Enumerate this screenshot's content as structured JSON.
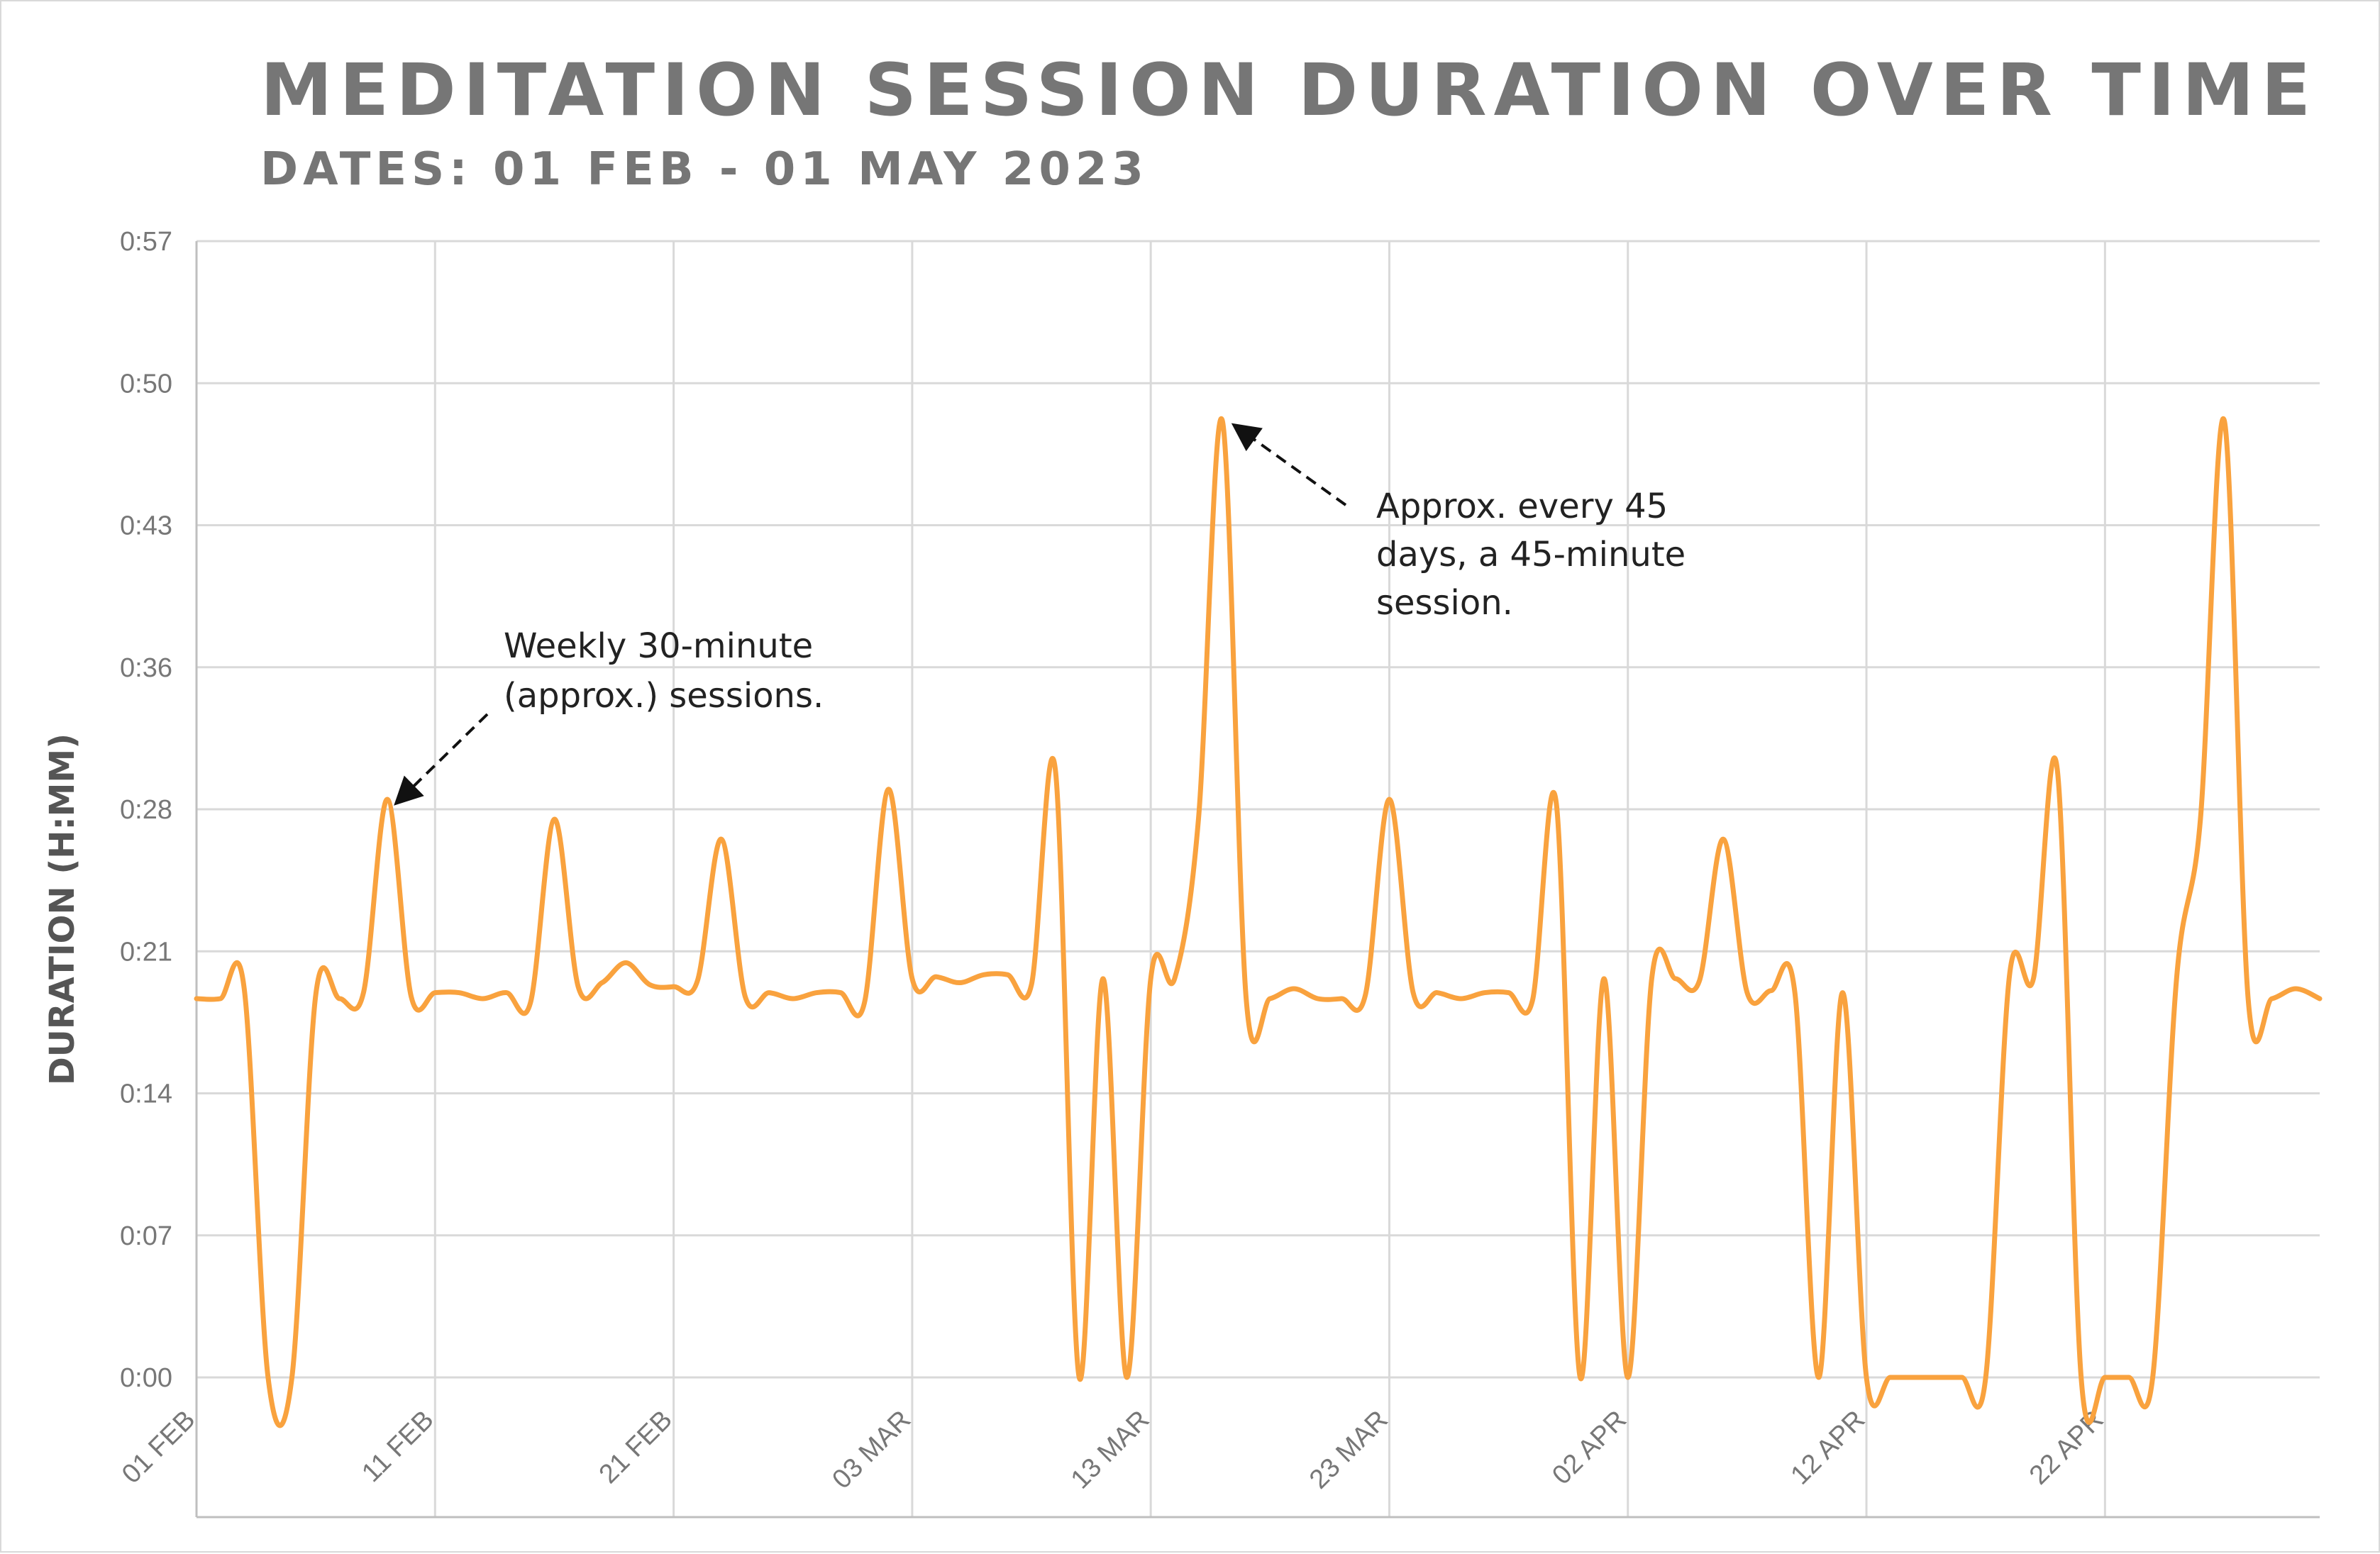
{
  "chart_data": {
    "type": "line",
    "title": "MEDITATION SESSION DURATION OVER TIME",
    "subtitle": "DATES: 01 FEB - 01 MAY 2023",
    "ylabel": "DURATION (H:MM)",
    "xlabel": "",
    "ylim": [
      0,
      57
    ],
    "y_ticks": [
      "0:00",
      "0:07",
      "0:14",
      "0:21",
      "0:28",
      "0:36",
      "0:43",
      "0:50",
      "0:57"
    ],
    "x_ticks": [
      "01 FEB",
      "11 FEB",
      "21 FEB",
      "03 MAR",
      "13 MAR",
      "23 MAR",
      "02 APR",
      "12 APR",
      "22 APR"
    ],
    "x_start": "2023-02-01",
    "x_end": "2023-05-01",
    "grid": true,
    "line_color": "#F9A23E",
    "series": [
      {
        "name": "",
        "points": [
          [
            "2023-02-01",
            19.0
          ],
          [
            "2023-02-02",
            19.0
          ],
          [
            "2023-02-03",
            19.5
          ],
          [
            "2023-02-04",
            0.0
          ],
          [
            "2023-02-05",
            0.0
          ],
          [
            "2023-02-06",
            19.2
          ],
          [
            "2023-02-07",
            19.0
          ],
          [
            "2023-02-08",
            19.3
          ],
          [
            "2023-02-09",
            29.0
          ],
          [
            "2023-02-10",
            19.1
          ],
          [
            "2023-02-11",
            19.3
          ],
          [
            "2023-02-12",
            19.3
          ],
          [
            "2023-02-13",
            19.0
          ],
          [
            "2023-02-14",
            19.3
          ],
          [
            "2023-02-15",
            18.8
          ],
          [
            "2023-02-16",
            28.0
          ],
          [
            "2023-02-17",
            19.6
          ],
          [
            "2023-02-18",
            19.8
          ],
          [
            "2023-02-19",
            20.8
          ],
          [
            "2023-02-20",
            19.7
          ],
          [
            "2023-02-21",
            19.6
          ],
          [
            "2023-02-22",
            19.9
          ],
          [
            "2023-02-23",
            27.0
          ],
          [
            "2023-02-24",
            19.1
          ],
          [
            "2023-02-25",
            19.3
          ],
          [
            "2023-02-26",
            19.0
          ],
          [
            "2023-02-27",
            19.3
          ],
          [
            "2023-02-28",
            19.3
          ],
          [
            "2023-03-01",
            18.8
          ],
          [
            "2023-03-02",
            29.5
          ],
          [
            "2023-03-03",
            20.0
          ],
          [
            "2023-03-04",
            20.1
          ],
          [
            "2023-03-05",
            19.8
          ],
          [
            "2023-03-06",
            20.2
          ],
          [
            "2023-03-07",
            20.2
          ],
          [
            "2023-03-08",
            19.7
          ],
          [
            "2023-03-09",
            30.5
          ],
          [
            "2023-03-10",
            0.0
          ],
          [
            "2023-03-11",
            20.0
          ],
          [
            "2023-03-12",
            0.0
          ],
          [
            "2023-03-13",
            20.0
          ],
          [
            "2023-03-14",
            20.0
          ],
          [
            "2023-03-15",
            28.0
          ],
          [
            "2023-03-16",
            48.0
          ],
          [
            "2023-03-17",
            19.0
          ],
          [
            "2023-03-18",
            19.0
          ],
          [
            "2023-03-19",
            19.5
          ],
          [
            "2023-03-20",
            19.0
          ],
          [
            "2023-03-21",
            19.0
          ],
          [
            "2023-03-22",
            19.2
          ],
          [
            "2023-03-23",
            29.0
          ],
          [
            "2023-03-24",
            19.3
          ],
          [
            "2023-03-25",
            19.3
          ],
          [
            "2023-03-26",
            19.0
          ],
          [
            "2023-03-27",
            19.3
          ],
          [
            "2023-03-28",
            19.3
          ],
          [
            "2023-03-29",
            18.9
          ],
          [
            "2023-03-30",
            28.8
          ],
          [
            "2023-03-31",
            0.0
          ],
          [
            "2023-04-01",
            20.0
          ],
          [
            "2023-04-02",
            0.0
          ],
          [
            "2023-04-03",
            20.0
          ],
          [
            "2023-04-04",
            20.0
          ],
          [
            "2023-04-05",
            19.9
          ],
          [
            "2023-04-06",
            27.0
          ],
          [
            "2023-04-07",
            19.3
          ],
          [
            "2023-04-08",
            19.4
          ],
          [
            "2023-04-09",
            19.3
          ],
          [
            "2023-04-10",
            0.0
          ],
          [
            "2023-04-11",
            19.3
          ],
          [
            "2023-04-12",
            0.0
          ],
          [
            "2023-04-13",
            0.0
          ],
          [
            "2023-04-14",
            0.0
          ],
          [
            "2023-04-15",
            0.0
          ],
          [
            "2023-04-16",
            0.0
          ],
          [
            "2023-04-17",
            0.0
          ],
          [
            "2023-04-18",
            20.2
          ],
          [
            "2023-04-19",
            20.0
          ],
          [
            "2023-04-20",
            30.5
          ],
          [
            "2023-04-21",
            0.0
          ],
          [
            "2023-04-22",
            0.0
          ],
          [
            "2023-04-23",
            0.0
          ],
          [
            "2023-04-24",
            0.0
          ],
          [
            "2023-04-25",
            20.0
          ],
          [
            "2023-04-26",
            28.0
          ],
          [
            "2023-04-27",
            48.0
          ],
          [
            "2023-04-28",
            19.0
          ],
          [
            "2023-04-29",
            19.0
          ],
          [
            "2023-04-30",
            19.5
          ],
          [
            "2023-05-01",
            19.0
          ]
        ]
      }
    ],
    "annotations": [
      {
        "lines": [
          "Weekly 30-minute",
          "(approx.) sessions."
        ],
        "target": [
          "2023-02-09",
          29.0
        ]
      },
      {
        "lines": [
          "Approx. every 45",
          "days, a 45-minute",
          "session."
        ],
        "target": [
          "2023-03-16",
          48.0
        ]
      }
    ]
  }
}
